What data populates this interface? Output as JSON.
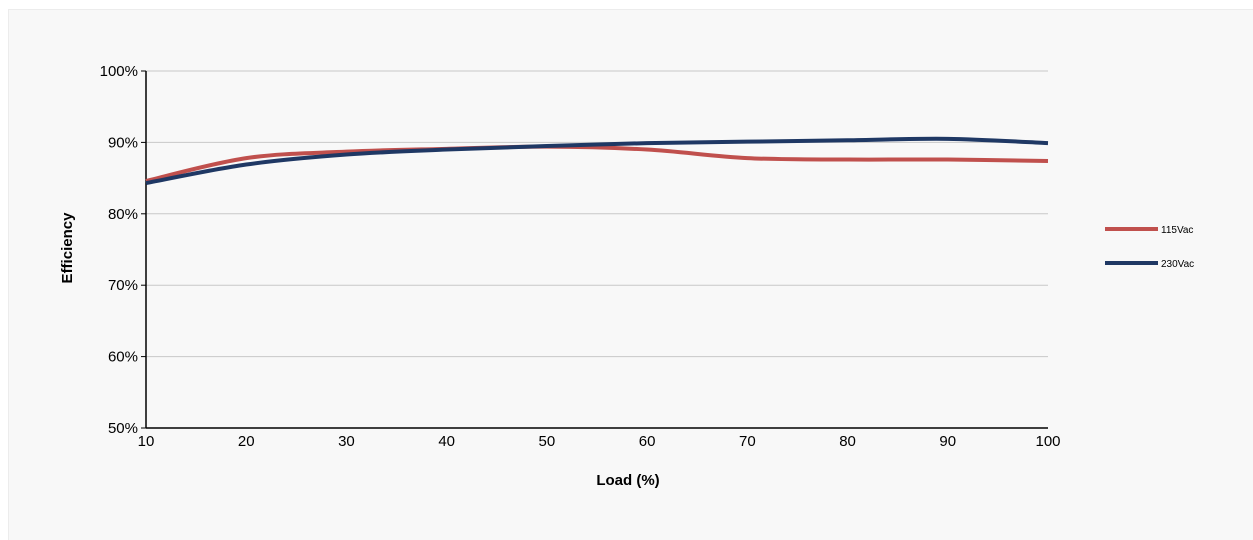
{
  "chart_data": {
    "type": "line",
    "title": "",
    "xlabel": "Load (%)",
    "ylabel": "Efficiency",
    "x": [
      10,
      20,
      30,
      40,
      50,
      60,
      70,
      80,
      90,
      100
    ],
    "x_ticks": [
      "10",
      "20",
      "30",
      "40",
      "50",
      "60",
      "70",
      "80",
      "90",
      "100"
    ],
    "y_ticks": [
      "50%",
      "60%",
      "70%",
      "80%",
      "90%",
      "100%"
    ],
    "xlim": [
      10,
      100
    ],
    "ylim": [
      50,
      100
    ],
    "grid": "horizontal",
    "legend_position": "right",
    "series": [
      {
        "name": "115Vac",
        "color": "#c0504d",
        "values": [
          84.6,
          87.8,
          88.7,
          89.1,
          89.4,
          89.0,
          87.8,
          87.6,
          87.6,
          87.4
        ]
      },
      {
        "name": "230Vac",
        "color": "#1f3864",
        "values": [
          84.3,
          86.9,
          88.3,
          89.0,
          89.5,
          89.9,
          90.1,
          90.3,
          90.5,
          89.9
        ]
      }
    ]
  }
}
